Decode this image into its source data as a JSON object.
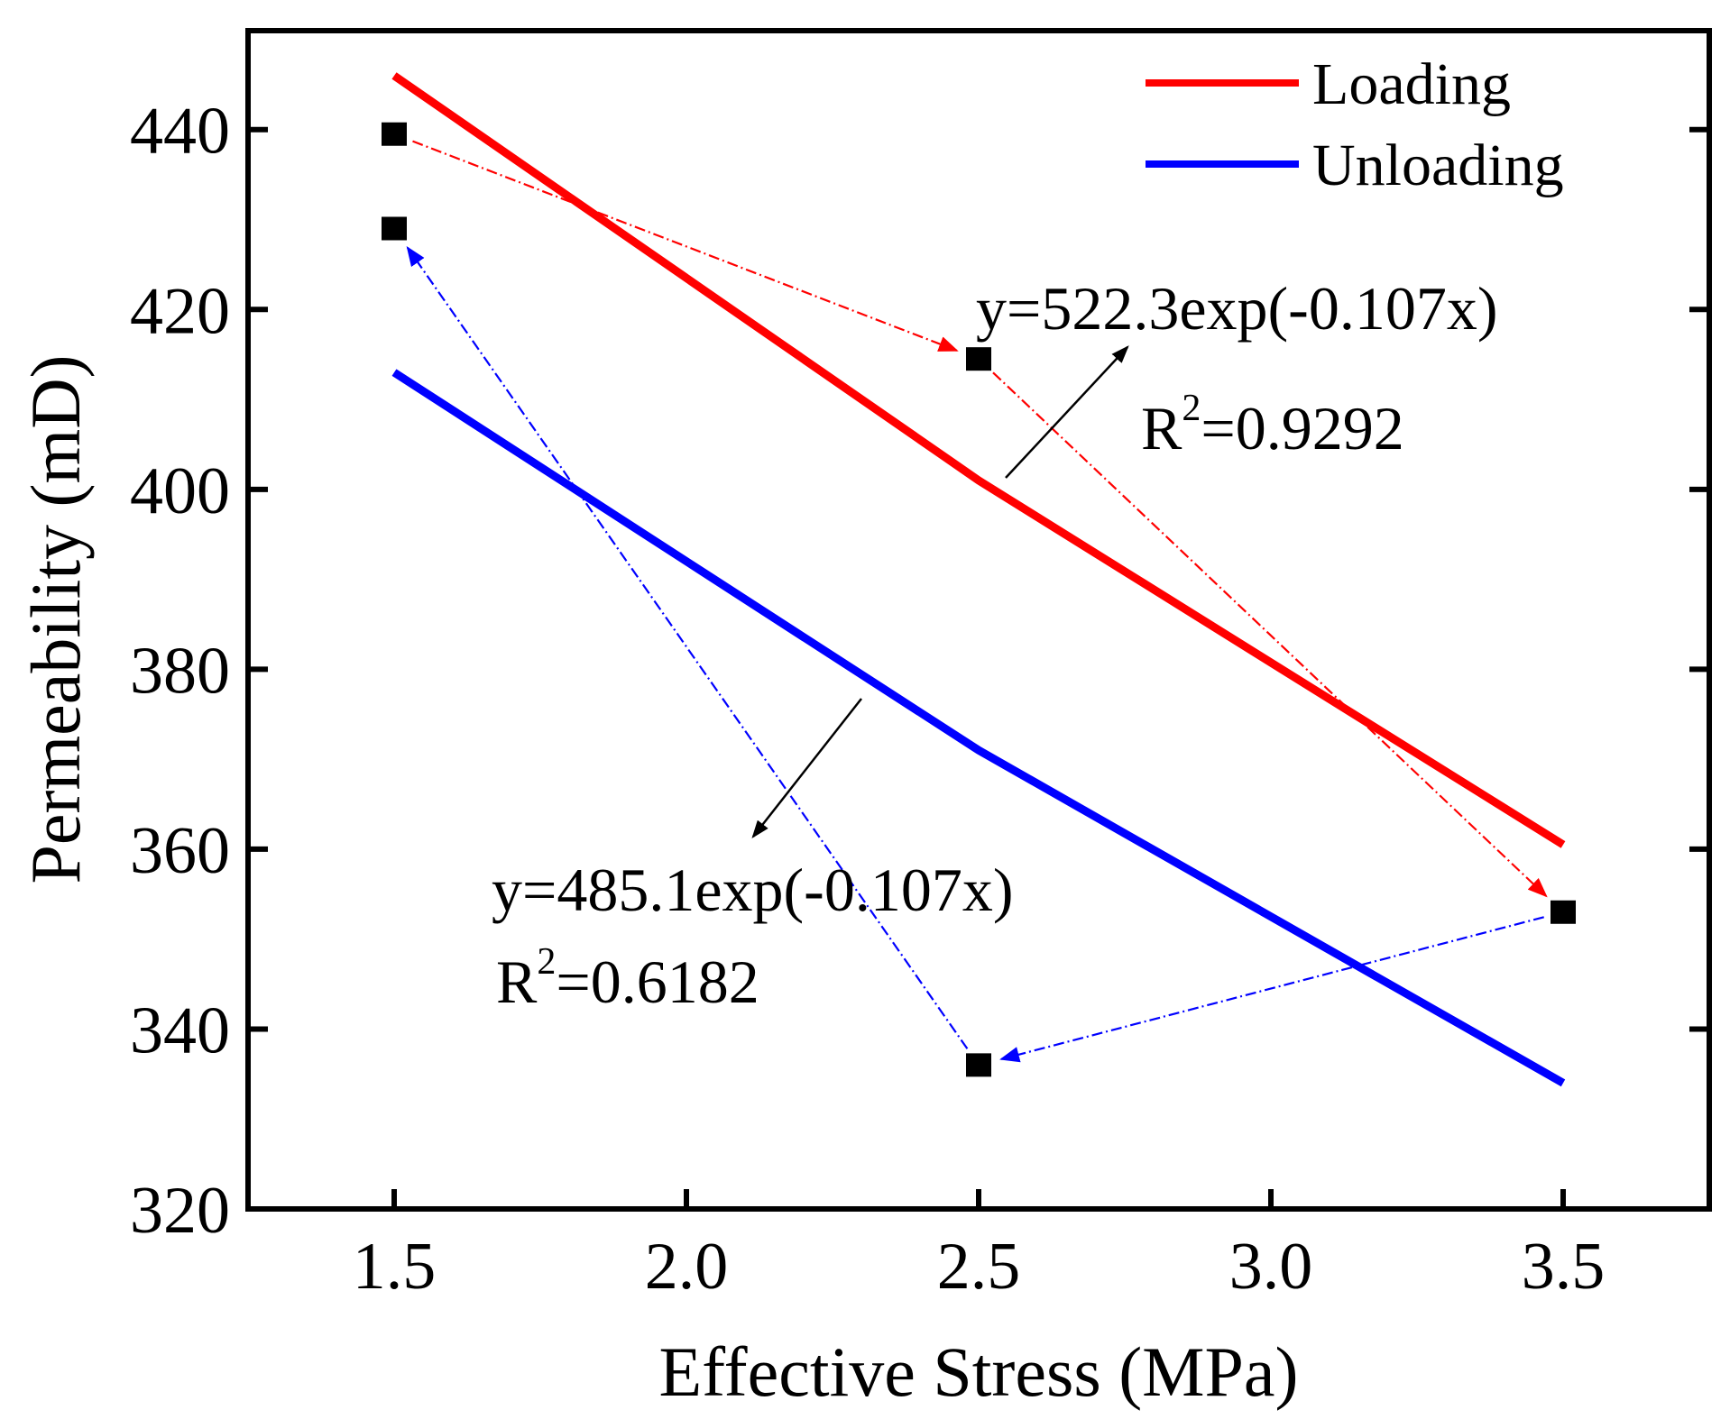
{
  "chart_data": {
    "type": "scatter",
    "xlabel": "Effective Stress (MPa)",
    "ylabel": "Permeability (mD)",
    "xlim": [
      1.25,
      3.75
    ],
    "ylim": [
      320,
      451
    ],
    "xticks": [
      1.5,
      2.0,
      2.5,
      3.0,
      3.5
    ],
    "xtick_labels": [
      "1.5",
      "2.0",
      "2.5",
      "3.0",
      "3.5"
    ],
    "yticks": [
      320,
      340,
      360,
      380,
      400,
      420,
      440
    ],
    "ytick_labels": [
      "320",
      "340",
      "360",
      "380",
      "400",
      "420",
      "440"
    ],
    "legend_position": "top-right",
    "points": [
      {
        "x": 1.5,
        "y": 439.5
      },
      {
        "x": 2.5,
        "y": 414.5
      },
      {
        "x": 3.5,
        "y": 353.0
      },
      {
        "x": 2.5,
        "y": 336.0
      },
      {
        "x": 1.5,
        "y": 429.0
      }
    ],
    "series": [
      {
        "name": "Loading",
        "color": "#ff0000",
        "coef": 522.3,
        "k": -0.107,
        "x_range": [
          1.5,
          3.5
        ],
        "fit_curve": {
          "x": [
            1.5,
            2.5,
            3.5
          ],
          "y": [
            446,
            401,
            360.5
          ]
        },
        "path_points": [
          [
            1.5,
            439.5
          ],
          [
            2.5,
            414.5
          ],
          [
            3.5,
            353.0
          ]
        ],
        "equation": "y=522.3exp(-0.107x)",
        "r2_prefix": "R",
        "r2_sup": "2",
        "r2_value": "=0.9292"
      },
      {
        "name": "Unloading",
        "color": "#0000ff",
        "coef": 485.1,
        "k": -0.107,
        "x_range": [
          1.5,
          3.5
        ],
        "fit_curve": {
          "x": [
            1.5,
            2.5,
            3.5
          ],
          "y": [
            413,
            371,
            334
          ]
        },
        "path_points": [
          [
            3.5,
            353.0
          ],
          [
            2.5,
            336.0
          ],
          [
            1.5,
            429.0
          ]
        ],
        "equation": "y=485.1exp(-0.107x)",
        "r2_prefix": "R",
        "r2_sup": "2",
        "r2_value": "=0.6182"
      }
    ]
  }
}
